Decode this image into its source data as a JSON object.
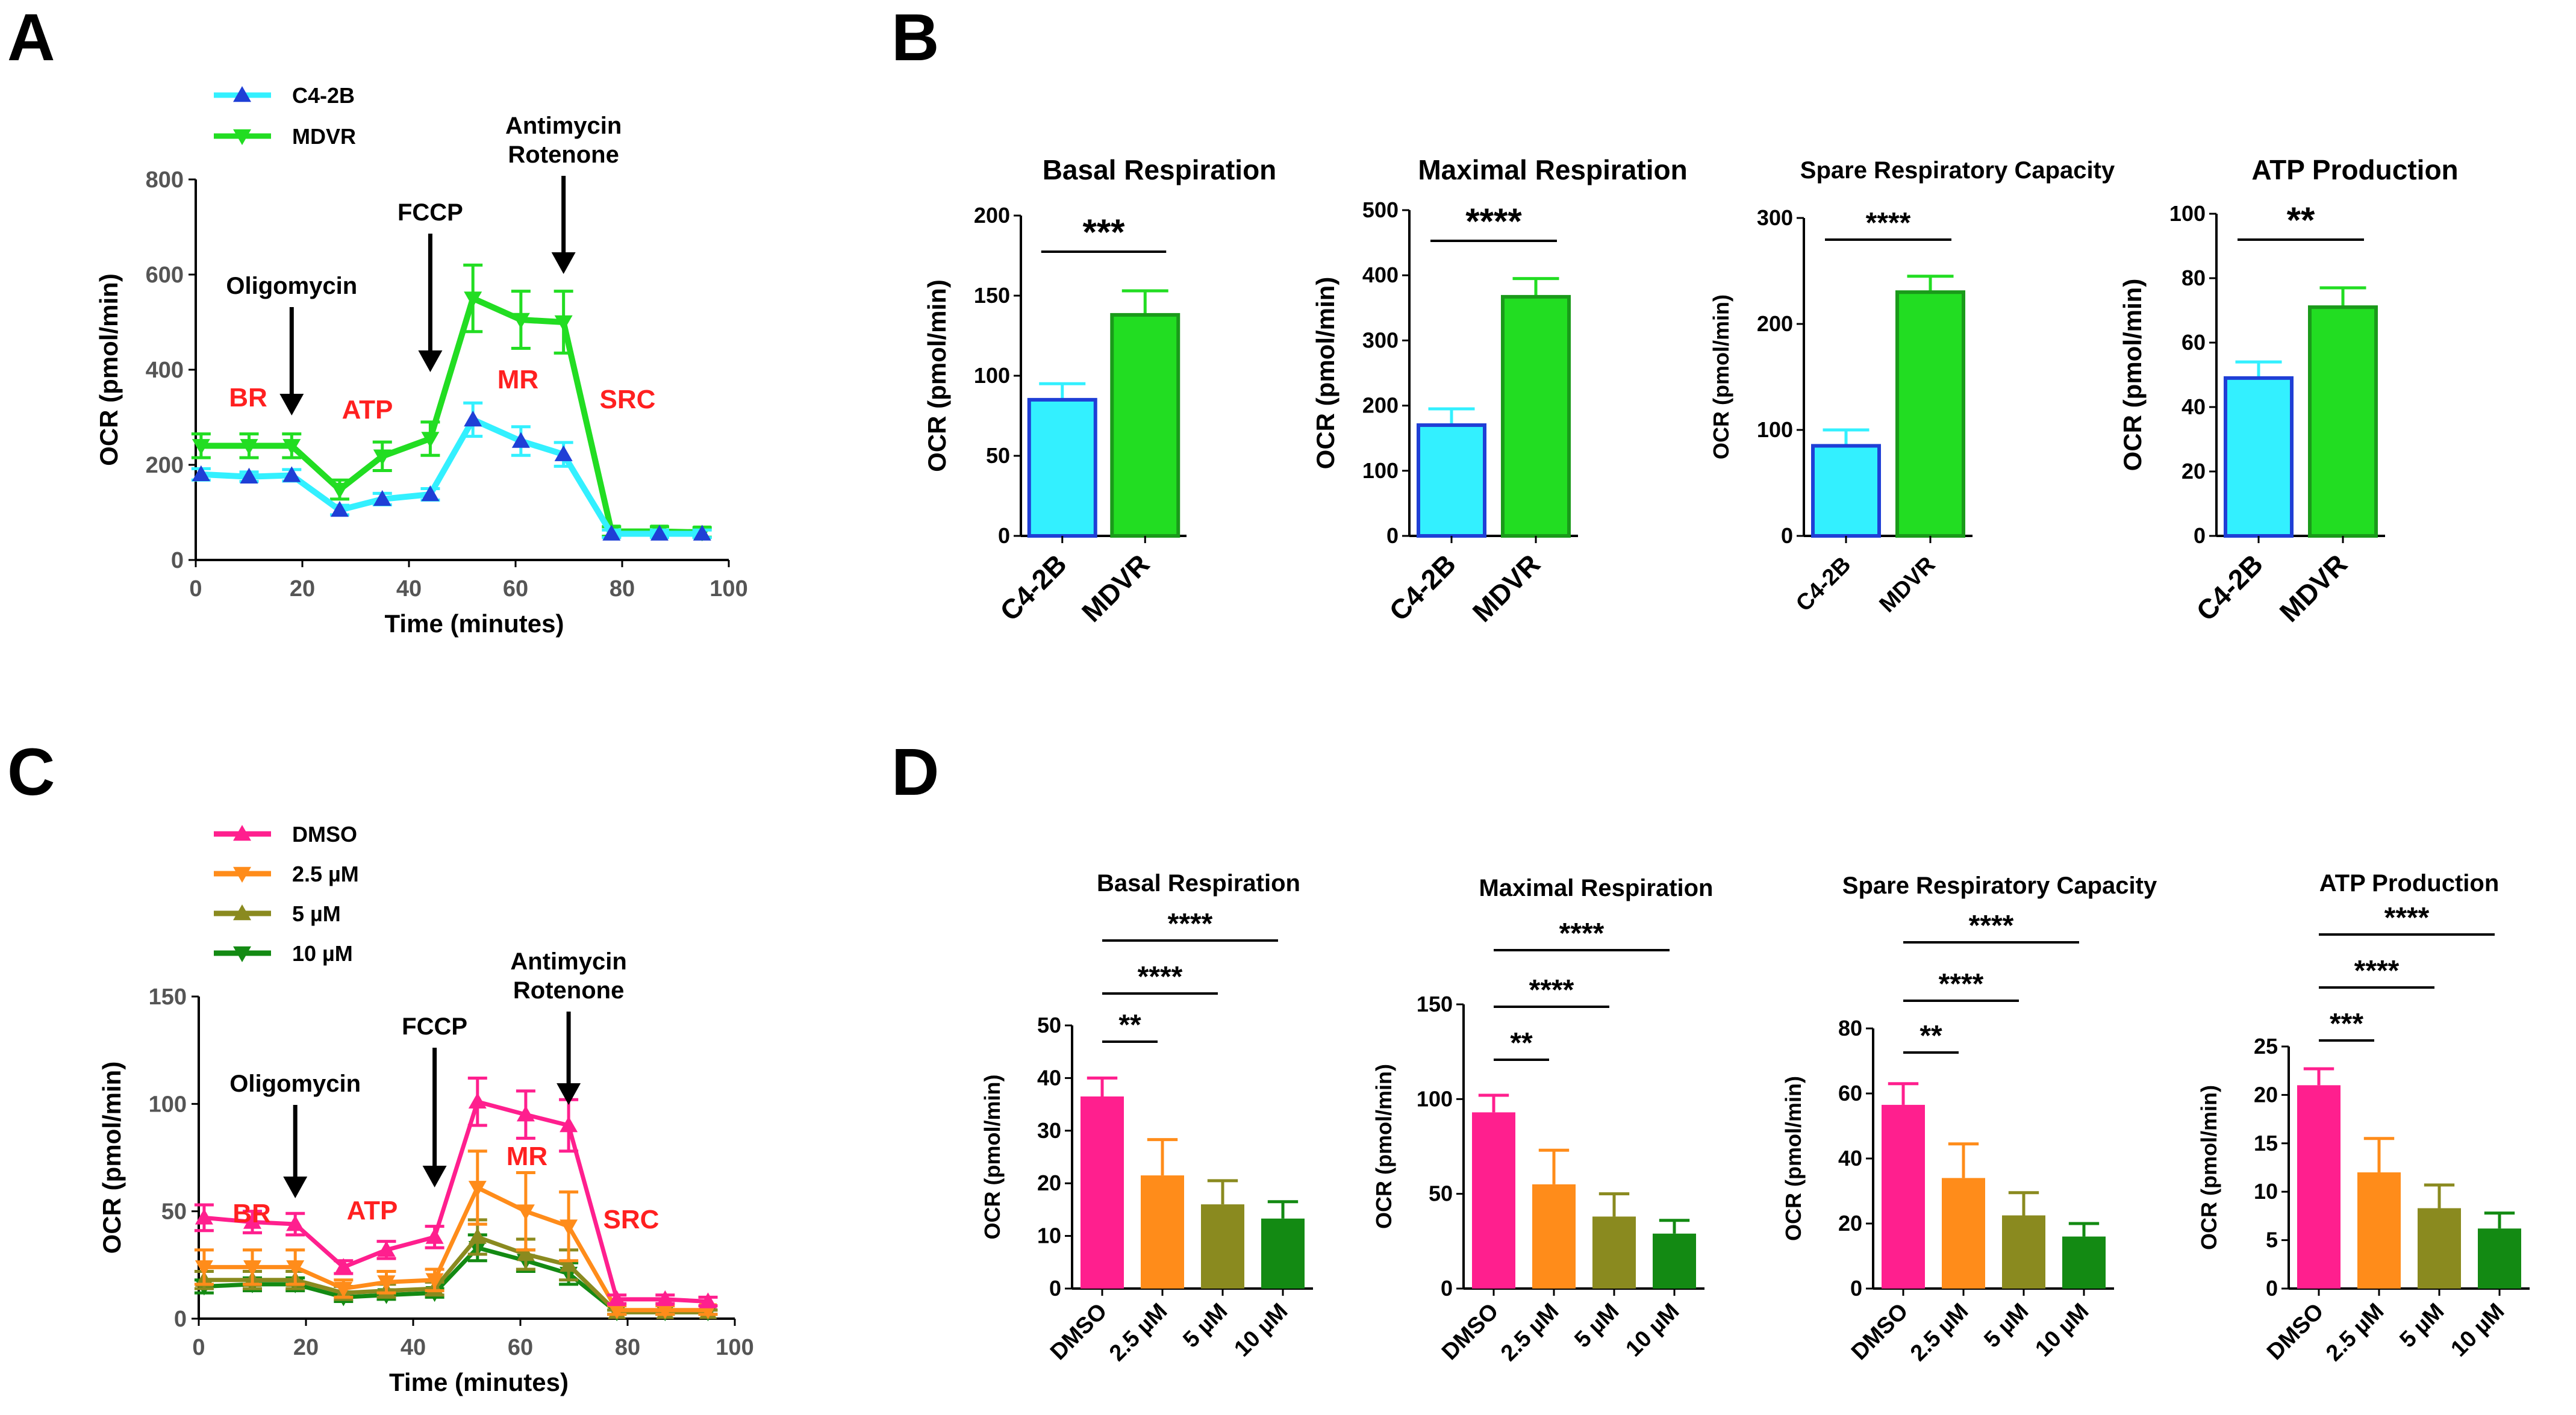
{
  "panels": {
    "A": "A",
    "B": "B",
    "C": "C",
    "D": "D"
  },
  "colors": {
    "C4-2B": "#33f0ff",
    "MDVR": "#22dd22",
    "DMSO": "#ff1f8e",
    "2.5 µM": "#ff8c1a",
    "5 µM": "#8a8a1f",
    "10 µM": "#138a13",
    "phase": "#ff2020"
  },
  "chart_data": [
    {
      "id": "A",
      "type": "line",
      "xlabel": "Time (minutes)",
      "ylabel": "OCR (pmol/min)",
      "xlim": [
        0,
        100
      ],
      "xticks": [
        0,
        20,
        40,
        60,
        80,
        100
      ],
      "ylim": [
        0,
        800
      ],
      "yticks": [
        0,
        200,
        400,
        600,
        800
      ],
      "x": [
        1,
        10,
        18,
        27,
        35,
        44,
        52,
        61,
        69,
        78,
        87,
        95
      ],
      "series": [
        {
          "name": "C4-2B",
          "marker": "triangle-up",
          "values": [
            180,
            175,
            178,
            105,
            128,
            138,
            295,
            250,
            222,
            55,
            55,
            55
          ],
          "errors": [
            12,
            10,
            12,
            10,
            12,
            12,
            35,
            30,
            25,
            8,
            8,
            8
          ]
        },
        {
          "name": "MDVR",
          "marker": "triangle-down",
          "values": [
            240,
            240,
            240,
            148,
            218,
            255,
            550,
            505,
            500,
            60,
            60,
            58
          ],
          "errors": [
            25,
            25,
            25,
            20,
            30,
            35,
            70,
            60,
            65,
            10,
            10,
            10
          ]
        }
      ],
      "legend": [
        "C4-2B",
        "MDVR"
      ],
      "injections": [
        {
          "label": "Oligomycin",
          "x": 18
        },
        {
          "label": "FCCP",
          "x": 44
        },
        {
          "label": "Antimycin",
          "label2": "Rotenone",
          "x": 69
        }
      ],
      "phases": [
        "BR",
        "ATP",
        "MR",
        "SRC"
      ]
    },
    {
      "id": "B1",
      "type": "bar",
      "title": "Basal Respiration",
      "ylabel": "OCR (pmol/min)",
      "categories": [
        "C4-2B",
        "MDVR"
      ],
      "values": [
        85,
        138
      ],
      "errors": [
        10,
        15
      ],
      "ylim": [
        0,
        200
      ],
      "yticks": [
        0,
        50,
        100,
        150,
        200
      ],
      "significance": [
        {
          "from": 0,
          "to": 1,
          "label": "***"
        }
      ]
    },
    {
      "id": "B2",
      "type": "bar",
      "title": "Maximal Respiration",
      "ylabel": "OCR (pmol/min)",
      "categories": [
        "C4-2B",
        "MDVR"
      ],
      "values": [
        170,
        367
      ],
      "errors": [
        25,
        28
      ],
      "ylim": [
        0,
        500
      ],
      "yticks": [
        0,
        100,
        200,
        300,
        400,
        500
      ],
      "significance": [
        {
          "from": 0,
          "to": 1,
          "label": "****"
        }
      ]
    },
    {
      "id": "B3",
      "type": "bar",
      "title": "Spare Respiratory Capacity",
      "ylabel": "OCR (pmol/min)",
      "categories": [
        "C4-2B",
        "MDVR"
      ],
      "values": [
        85,
        230
      ],
      "errors": [
        15,
        15
      ],
      "ylim": [
        0,
        300
      ],
      "yticks": [
        0,
        100,
        200,
        300
      ],
      "significance": [
        {
          "from": 0,
          "to": 1,
          "label": "****"
        }
      ]
    },
    {
      "id": "B4",
      "type": "bar",
      "title": "ATP Production",
      "ylabel": "OCR (pmol/min)",
      "categories": [
        "C4-2B",
        "MDVR"
      ],
      "values": [
        49,
        71
      ],
      "errors": [
        5,
        6
      ],
      "ylim": [
        0,
        100
      ],
      "yticks": [
        0,
        20,
        40,
        60,
        80,
        100
      ],
      "significance": [
        {
          "from": 0,
          "to": 1,
          "label": "**"
        }
      ]
    },
    {
      "id": "C",
      "type": "line",
      "xlabel": "Time (minutes)",
      "ylabel": "OCR (pmol/min)",
      "xlim": [
        0,
        100
      ],
      "xticks": [
        0,
        20,
        40,
        60,
        80,
        100
      ],
      "ylim": [
        0,
        150
      ],
      "yticks": [
        0,
        50,
        100,
        150
      ],
      "x": [
        1,
        10,
        18,
        27,
        35,
        44,
        52,
        61,
        69,
        78,
        87,
        95
      ],
      "series": [
        {
          "name": "DMSO",
          "marker": "triangle-up",
          "values": [
            47,
            45,
            44,
            24,
            32,
            38,
            101,
            95,
            90,
            9,
            9,
            8
          ],
          "errors": [
            6,
            5,
            5,
            3,
            4,
            5,
            11,
            11,
            12,
            2,
            2,
            2
          ]
        },
        {
          "name": "2.5 µM",
          "marker": "triangle-down",
          "values": [
            24,
            24,
            24,
            14,
            17,
            18,
            61,
            50,
            43,
            4,
            4,
            4
          ],
          "errors": [
            8,
            8,
            8,
            4,
            5,
            5,
            17,
            18,
            16,
            2,
            2,
            2
          ]
        },
        {
          "name": "5 µM",
          "marker": "triangle-up",
          "values": [
            18,
            18,
            18,
            12,
            13,
            14,
            38,
            30,
            25,
            3,
            3,
            3
          ],
          "errors": [
            4,
            4,
            4,
            3,
            3,
            3,
            8,
            7,
            7,
            1,
            1,
            1
          ]
        },
        {
          "name": "10 µM",
          "marker": "triangle-down",
          "values": [
            15,
            16,
            16,
            10,
            11,
            12,
            33,
            27,
            21,
            3,
            3,
            3
          ],
          "errors": [
            3,
            3,
            3,
            2,
            2,
            2,
            6,
            5,
            5,
            1,
            1,
            1
          ]
        }
      ],
      "legend": [
        "DMSO",
        "2.5 µM",
        "5 µM",
        "10 µM"
      ],
      "injections": [
        {
          "label": "Oligomycin",
          "x": 18
        },
        {
          "label": "FCCP",
          "x": 44
        },
        {
          "label": "Antimycin",
          "label2": "Rotenone",
          "x": 69
        }
      ],
      "phases": [
        "BR",
        "ATP",
        "MR",
        "SRC"
      ]
    },
    {
      "id": "D1",
      "type": "bar",
      "title": "Basal Respiration",
      "ylabel": "OCR (pmol/min)",
      "categories": [
        "DMSO",
        "2.5 µM",
        "5 µM",
        "10 µM"
      ],
      "values": [
        36.5,
        21.5,
        16,
        13.3
      ],
      "errors": [
        3.5,
        6.8,
        4.5,
        3.2
      ],
      "ylim": [
        0,
        50
      ],
      "yticks": [
        0,
        10,
        20,
        30,
        40,
        50
      ],
      "significance": [
        {
          "from": 0,
          "to": 1,
          "label": "**"
        },
        {
          "from": 0,
          "to": 2,
          "label": "****"
        },
        {
          "from": 0,
          "to": 3,
          "label": "****"
        }
      ]
    },
    {
      "id": "D2",
      "type": "bar",
      "title": "Maximal Respiration",
      "ylabel": "OCR (pmol/min)",
      "categories": [
        "DMSO",
        "2.5 µM",
        "5 µM",
        "10 µM"
      ],
      "values": [
        93,
        55,
        38,
        29
      ],
      "errors": [
        9,
        18,
        12,
        7
      ],
      "ylim": [
        0,
        150
      ],
      "yticks": [
        0,
        50,
        100,
        150
      ],
      "significance": [
        {
          "from": 0,
          "to": 1,
          "label": "**"
        },
        {
          "from": 0,
          "to": 2,
          "label": "****"
        },
        {
          "from": 0,
          "to": 3,
          "label": "****"
        }
      ]
    },
    {
      "id": "D3",
      "type": "bar",
      "title": "Spare Respiratory Capacity",
      "ylabel": "OCR (pmol/min)",
      "categories": [
        "DMSO",
        "2.5 µM",
        "5 µM",
        "10 µM"
      ],
      "values": [
        56.5,
        34,
        22.5,
        16
      ],
      "errors": [
        6.5,
        10.5,
        7,
        4
      ],
      "ylim": [
        0,
        80
      ],
      "yticks": [
        0,
        20,
        40,
        60,
        80
      ],
      "significance": [
        {
          "from": 0,
          "to": 1,
          "label": "**"
        },
        {
          "from": 0,
          "to": 2,
          "label": "****"
        },
        {
          "from": 0,
          "to": 3,
          "label": "****"
        }
      ]
    },
    {
      "id": "D4",
      "type": "bar",
      "title": "ATP Production",
      "ylabel": "OCR (pmol/min)",
      "categories": [
        "DMSO",
        "2.5 µM",
        "5 µM",
        "10 µM"
      ],
      "values": [
        21,
        12,
        8.3,
        6.2
      ],
      "errors": [
        1.7,
        3.5,
        2.4,
        1.6
      ],
      "ylim": [
        0,
        25
      ],
      "yticks": [
        0,
        5,
        10,
        15,
        20,
        25
      ],
      "significance": [
        {
          "from": 0,
          "to": 1,
          "label": "***"
        },
        {
          "from": 0,
          "to": 2,
          "label": "****"
        },
        {
          "from": 0,
          "to": 3,
          "label": "****"
        }
      ]
    }
  ]
}
